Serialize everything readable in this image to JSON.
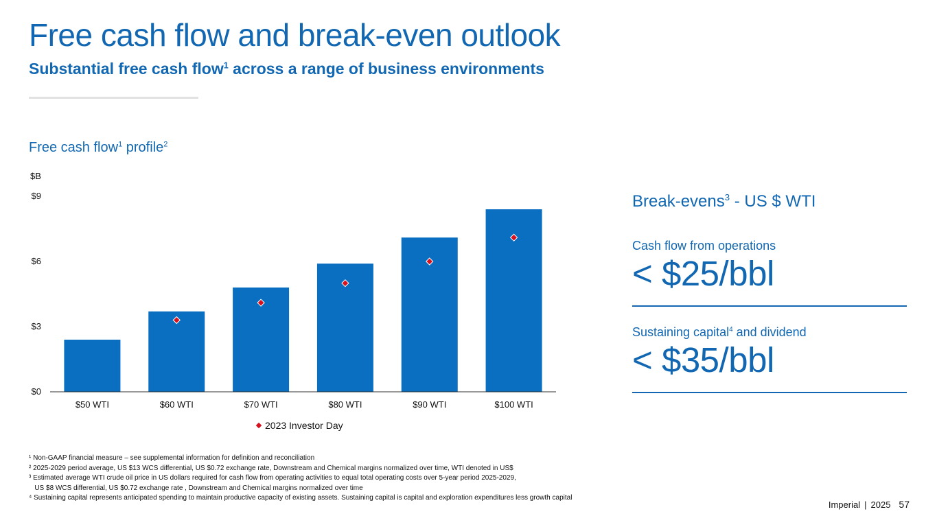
{
  "header": {
    "title": "Free cash flow and break-even outlook",
    "subtitle_pre": "Substantial free cash flow",
    "subtitle_sup": "1",
    "subtitle_post": " across a range of business environments"
  },
  "chart_section": {
    "title_pre": "Free cash flow",
    "title_sup1": "1",
    "title_mid": " profile",
    "title_sup2": "2",
    "unit_label": "$B"
  },
  "chart_data": {
    "type": "bar",
    "categories": [
      "$50 WTI",
      "$60 WTI",
      "$70 WTI",
      "$80 WTI",
      "$90 WTI",
      "$100 WTI"
    ],
    "series": [
      {
        "values": [
          2.4,
          3.7,
          4.8,
          5.9,
          7.1,
          8.4
        ],
        "color": "#0a6fc1"
      },
      {
        "name": "2023 Investor Day",
        "type": "scatter",
        "marker": "diamond",
        "categories": [
          "$60 WTI",
          "$70 WTI",
          "$80 WTI",
          "$90 WTI",
          "$100 WTI"
        ],
        "values": [
          3.3,
          4.1,
          5.0,
          6.0,
          7.1
        ],
        "color": "#d6121e"
      }
    ],
    "ylim": [
      0,
      9
    ],
    "yticks": [
      0,
      3,
      6,
      9
    ],
    "ytick_labels": [
      "$0",
      "$3",
      "$6",
      "$9"
    ],
    "legend_position": "bottom-center",
    "grid": false
  },
  "legend": {
    "label": "2023 Investor Day"
  },
  "breakevens": {
    "title_pre": "Break-evens",
    "title_sup": "3",
    "title_post": " - US $ WTI",
    "items": [
      {
        "label_pre": "Cash flow from operations",
        "label_sup": "",
        "label_post": "",
        "value": "< $25/bbl"
      },
      {
        "label_pre": "Sustaining capital",
        "label_sup": "4",
        "label_post": " and dividend",
        "value": "< $35/bbl"
      }
    ]
  },
  "footnotes": [
    "¹ Non-GAAP financial measure – see supplemental information for definition and reconciliation",
    "² 2025-2029 period average, US $13 WCS differential, US $0.72 exchange rate, Downstream and Chemical margins normalized over time, WTI denoted in US$",
    "³ Estimated average WTI  crude oil price in US dollars required for cash flow from operating activities to equal total operating costs over 5-year period 2025-2029,",
    "   US $8 WCS differential, US $0.72 exchange rate , Downstream and Chemical margins normalized over time",
    "⁴ Sustaining capital represents anticipated spending to maintain productive capacity of existing assets. Sustaining capital is capital and exploration expenditures less growth capital"
  ],
  "footer": {
    "company": "Imperial",
    "separator": "|",
    "year": "2025",
    "page": "57"
  },
  "colors": {
    "brand_blue": "#1167b1",
    "bar_blue": "#0a6fc1",
    "marker_red": "#d6121e"
  }
}
